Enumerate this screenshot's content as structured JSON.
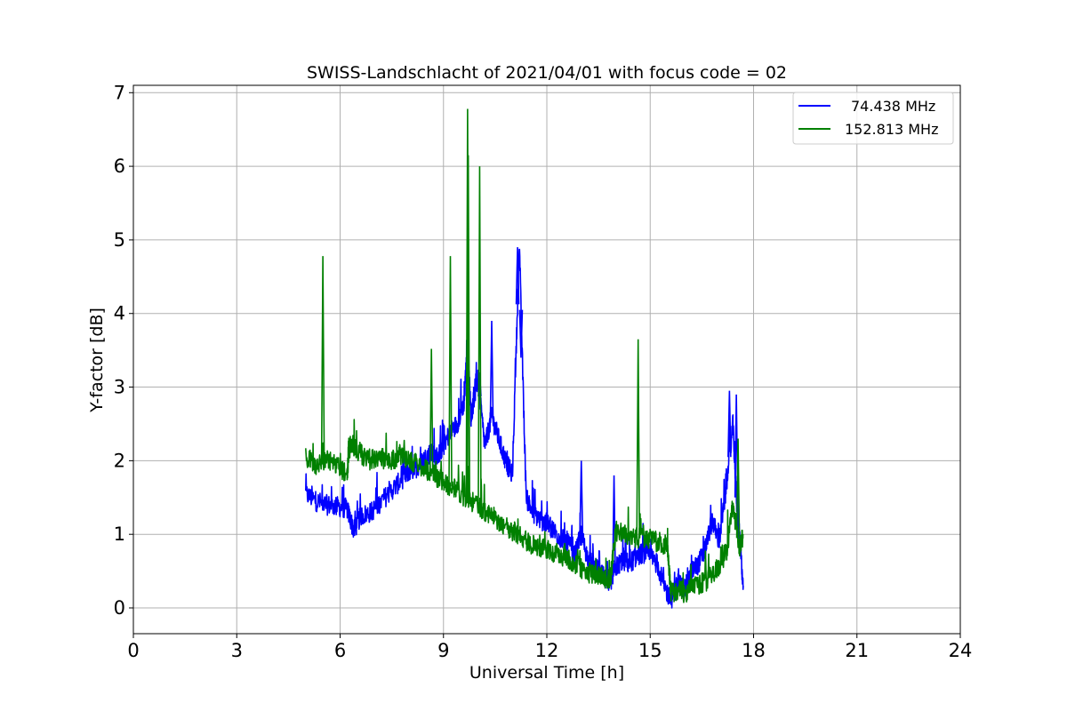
{
  "chart_data": {
    "type": "line",
    "title": "SWISS-Landschlacht of 2021/04/01 with focus code = 02",
    "xlabel": "Universal Time [h]",
    "ylabel": "Y-factor [dB]",
    "xlim": [
      0,
      24
    ],
    "ylim": [
      -0.35,
      7.1
    ],
    "xticks": [
      0,
      3,
      6,
      9,
      12,
      15,
      18,
      21,
      24
    ],
    "xtick_labels": [
      "0",
      "3",
      "6",
      "9",
      "12",
      "15",
      "18",
      "21",
      "24"
    ],
    "yticks": [
      0,
      1,
      2,
      3,
      4,
      5,
      6,
      7
    ],
    "ytick_labels": [
      "0",
      "1",
      "2",
      "3",
      "4",
      "5",
      "6",
      "7"
    ],
    "grid": true,
    "legend_position": "top-right",
    "series": [
      {
        "name": "74.438 MHz",
        "color": "#0000ff",
        "x": [
          5.0,
          5.3,
          5.6,
          5.9,
          6.2,
          6.4,
          6.6,
          6.9,
          7.2,
          7.5,
          7.8,
          8.0,
          8.2,
          8.4,
          8.6,
          8.8,
          9.0,
          9.2,
          9.4,
          9.6,
          9.7,
          9.8,
          9.9,
          10.0,
          10.2,
          10.4,
          10.6,
          10.8,
          11.0,
          11.2,
          11.4,
          11.6,
          11.8,
          12.0,
          12.2,
          12.4,
          12.6,
          12.8,
          13.0,
          13.2,
          13.4,
          13.6,
          13.8,
          14.0,
          14.2,
          14.4,
          14.6,
          14.8,
          15.0,
          15.2,
          15.4,
          15.6,
          15.8,
          16.0,
          16.2,
          16.4,
          16.6,
          16.8,
          17.0,
          17.2,
          17.4,
          17.5,
          17.6,
          17.7
        ],
        "y": [
          1.55,
          1.45,
          1.4,
          1.38,
          1.35,
          1.05,
          1.25,
          1.3,
          1.45,
          1.6,
          1.75,
          1.85,
          1.9,
          2.0,
          2.1,
          2.05,
          2.2,
          2.4,
          2.5,
          2.8,
          3.6,
          2.6,
          2.9,
          3.1,
          2.2,
          2.6,
          2.3,
          2.0,
          1.8,
          4.9,
          1.5,
          1.3,
          1.2,
          1.15,
          1.05,
          0.95,
          0.9,
          0.7,
          1.0,
          0.65,
          0.55,
          0.45,
          0.3,
          0.55,
          0.65,
          0.6,
          0.7,
          0.75,
          0.7,
          0.6,
          0.3,
          0.1,
          0.35,
          0.25,
          0.5,
          0.6,
          0.8,
          1.2,
          0.9,
          1.6,
          2.5,
          1.5,
          0.9,
          0.3
        ],
        "spikes": [
          {
            "x": 9.7,
            "y": 3.6
          },
          {
            "x": 10.05,
            "y": 3.2
          },
          {
            "x": 10.4,
            "y": 3.9
          },
          {
            "x": 11.15,
            "y": 4.9
          },
          {
            "x": 11.25,
            "y": 3.4
          },
          {
            "x": 13.0,
            "y": 2.0
          },
          {
            "x": 13.95,
            "y": 1.8
          },
          {
            "x": 17.3,
            "y": 2.95
          },
          {
            "x": 17.5,
            "y": 2.9
          }
        ]
      },
      {
        "name": "152.813 MHz",
        "color": "#008000",
        "x": [
          5.0,
          5.3,
          5.6,
          5.9,
          6.2,
          6.3,
          6.5,
          6.8,
          7.1,
          7.4,
          7.7,
          8.0,
          8.3,
          8.6,
          8.9,
          9.2,
          9.5,
          9.8,
          10.1,
          10.4,
          10.7,
          11.0,
          11.3,
          11.6,
          11.9,
          12.2,
          12.5,
          12.8,
          13.1,
          13.4,
          13.7,
          13.85,
          14.0,
          14.3,
          14.6,
          14.9,
          15.2,
          15.5,
          15.6,
          15.8,
          16.0,
          16.3,
          16.6,
          16.9,
          17.2,
          17.4,
          17.6,
          17.7
        ],
        "y": [
          2.05,
          1.95,
          2.0,
          1.95,
          1.8,
          2.25,
          2.15,
          2.0,
          2.05,
          2.0,
          2.05,
          2.0,
          1.95,
          1.85,
          1.75,
          1.65,
          1.55,
          1.45,
          1.35,
          1.25,
          1.15,
          1.05,
          0.95,
          0.85,
          0.8,
          0.75,
          0.7,
          0.6,
          0.5,
          0.45,
          0.4,
          0.4,
          1.05,
          1.0,
          0.95,
          0.95,
          0.9,
          0.85,
          0.2,
          0.25,
          0.2,
          0.3,
          0.35,
          0.5,
          0.7,
          1.4,
          0.8,
          1.0
        ],
        "spikes": [
          {
            "x": 5.5,
            "y": 4.78
          },
          {
            "x": 8.65,
            "y": 3.52
          },
          {
            "x": 9.2,
            "y": 4.78
          },
          {
            "x": 9.7,
            "y": 6.78
          },
          {
            "x": 9.72,
            "y": 6.15
          },
          {
            "x": 10.05,
            "y": 6.0
          },
          {
            "x": 14.65,
            "y": 3.65
          },
          {
            "x": 17.55,
            "y": 2.3
          }
        ]
      }
    ]
  }
}
